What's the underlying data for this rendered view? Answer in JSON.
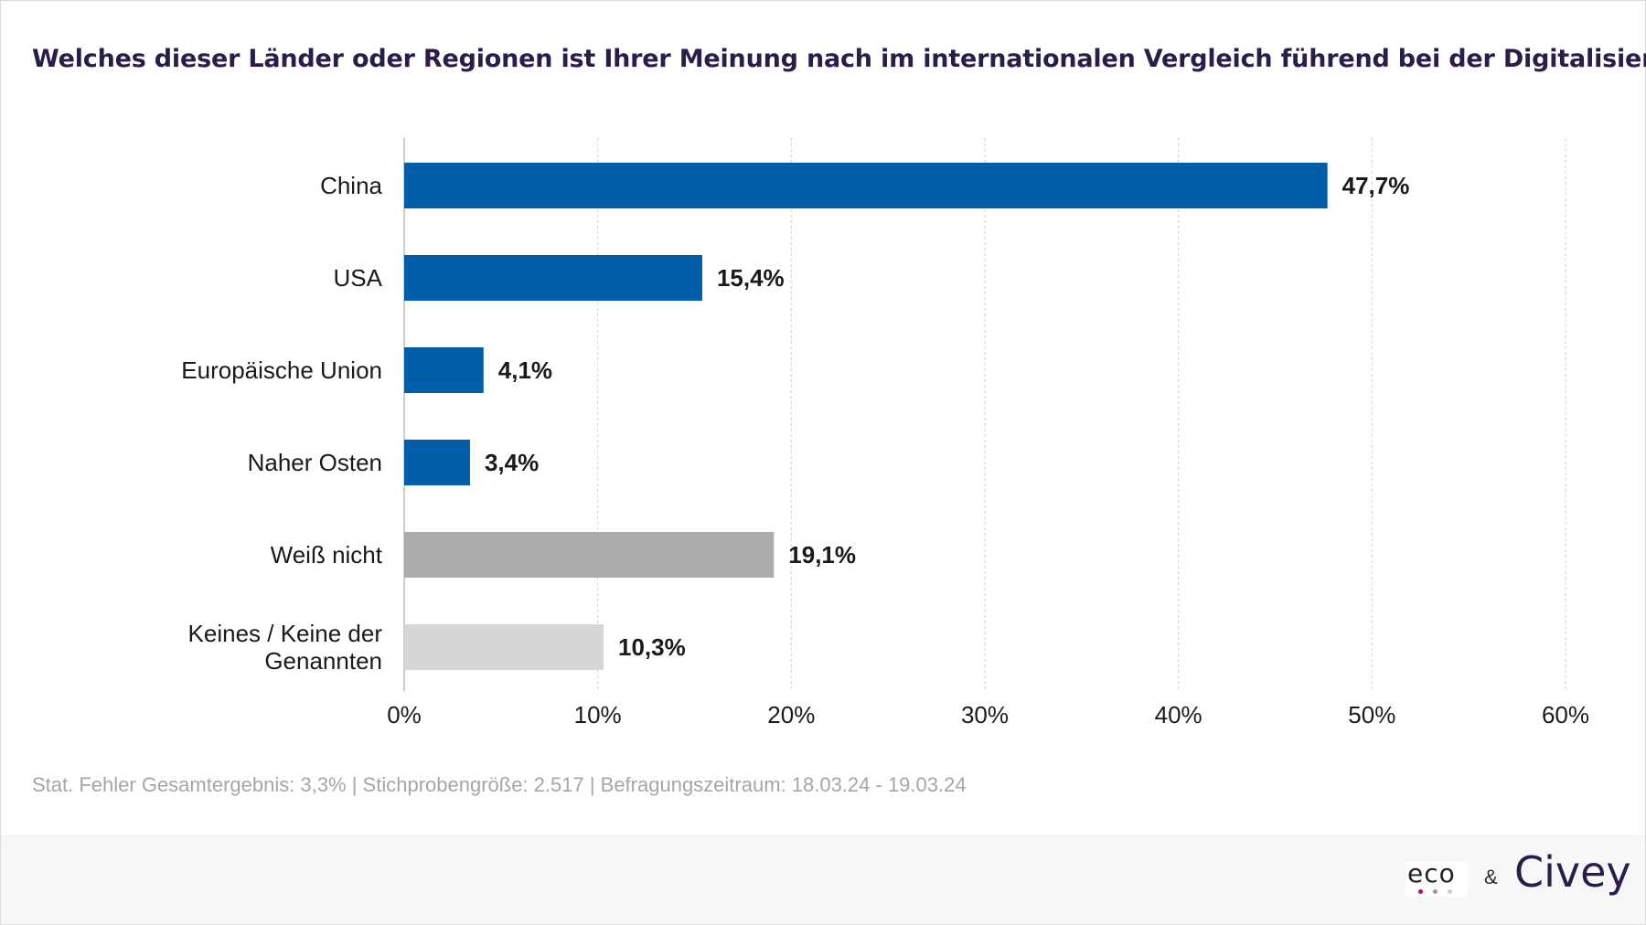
{
  "title": "Welches dieser Länder oder Regionen ist Ihrer Meinung nach im internationalen Vergleich führend bei der Digitalisierung?",
  "chart_data": {
    "type": "bar",
    "orientation": "horizontal",
    "categories": [
      "China",
      "USA",
      "Europäische Union",
      "Naher Osten",
      "Weiß nicht",
      "Keines / Keine der Genannten"
    ],
    "category_lines": [
      [
        "China"
      ],
      [
        "USA"
      ],
      [
        "Europäische Union"
      ],
      [
        "Naher Osten"
      ],
      [
        "Weiß nicht"
      ],
      [
        "Keines / Keine der",
        "Genannten"
      ]
    ],
    "values": [
      47.7,
      15.4,
      4.1,
      3.4,
      19.1,
      10.3
    ],
    "value_labels": [
      "47,7%",
      "15,4%",
      "4,1%",
      "3,4%",
      "19,1%",
      "10,3%"
    ],
    "bar_colors": [
      "#005ea8",
      "#005ea8",
      "#005ea8",
      "#005ea8",
      "#ababab",
      "#d6d6d6"
    ],
    "xlim": [
      0,
      60
    ],
    "ticks": [
      0,
      10,
      20,
      30,
      40,
      50,
      60
    ],
    "tick_labels": [
      "0%",
      "10%",
      "20%",
      "30%",
      "40%",
      "50%",
      "60%"
    ],
    "grid": true,
    "xlabel": "",
    "ylabel": ""
  },
  "footnote": "Stat. Fehler Gesamtergebnis: 3,3% | Stichprobengröße: 2.517 | Befragungszeitraum: 18.03.24 - 19.03.24",
  "logos": {
    "eco": "eco",
    "ampersand": "&",
    "civey": "Civey",
    "eco_dot_colors": [
      "#c8102e",
      "#999999",
      "#cccccc"
    ]
  }
}
